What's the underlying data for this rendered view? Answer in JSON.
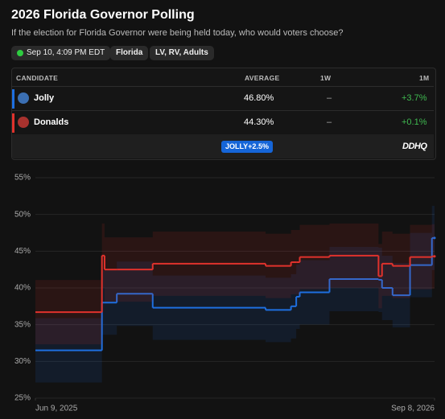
{
  "header": {
    "title": "2026 Florida Governor Polling",
    "subtitle": "If the election for Florida Governor were being held today, who would voters choose?",
    "pills": [
      "Sep 10, 4:09 PM EDT",
      "Florida",
      "LV, RV, Adults"
    ]
  },
  "table": {
    "columns": [
      "CANDIDATE",
      "AVERAGE",
      "1W",
      "1M"
    ],
    "rows": [
      [
        "Jolly",
        "46.80%",
        "–",
        "+3.7%"
      ],
      [
        "Donalds",
        "44.30%",
        "–",
        "+0.1%"
      ]
    ],
    "badge": "JOLLY+2.5%",
    "logo": "DDHQ"
  },
  "chart_data": {
    "type": "line",
    "step": true,
    "x": [
      "2025-06-09",
      "2025-08-24",
      "2025-08-27",
      "2025-09-10",
      "2025-10-21",
      "2026-02-27",
      "2026-03-28",
      "2026-04-03",
      "2026-04-07",
      "2026-05-11",
      "2026-07-06",
      "2026-07-10",
      "2026-07-22",
      "2026-08-11",
      "2026-09-05",
      "2026-09-08"
    ],
    "series": [
      {
        "name": "Jolly",
        "color": "#1e6fe0",
        "values": [
          31.5,
          38.0,
          38.0,
          39.2,
          37.3,
          37.0,
          37.5,
          38.8,
          39.4,
          41.2,
          41.1,
          40.0,
          39.0,
          43.1,
          46.8,
          46.8
        ]
      },
      {
        "name": "Donalds",
        "color": "#e0322c",
        "values": [
          36.7,
          44.4,
          42.5,
          42.5,
          43.3,
          43.0,
          43.5,
          43.5,
          44.2,
          44.4,
          41.6,
          43.3,
          43.0,
          44.2,
          44.3,
          44.3
        ]
      }
    ],
    "xlim": [
      "2025-06-09",
      "2026-09-08"
    ],
    "xticks": [
      {
        "value": "2025-06-09",
        "label": "Jun 9, 2025"
      },
      {
        "value": "2026-09-08",
        "label": "Sep 8, 2026"
      }
    ],
    "ylim": [
      25,
      55
    ],
    "yticks": [
      {
        "value": 25,
        "label": "25%"
      },
      {
        "value": 30,
        "label": "30%"
      },
      {
        "value": 35,
        "label": "35%"
      },
      {
        "value": 40,
        "label": "40%"
      },
      {
        "value": 45,
        "label": "45%"
      },
      {
        "value": 50,
        "label": "50%"
      },
      {
        "value": 55,
        "label": "55%"
      }
    ],
    "grid": true
  }
}
